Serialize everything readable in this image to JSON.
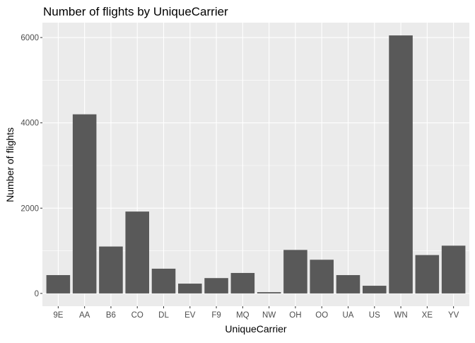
{
  "chart_data": {
    "type": "bar",
    "title": "Number of flights by UniqueCarrier",
    "xlabel": "UniqueCarrier",
    "ylabel": "Number of flights",
    "categories": [
      "9E",
      "AA",
      "B6",
      "CO",
      "DL",
      "EV",
      "F9",
      "MQ",
      "NW",
      "OH",
      "OO",
      "UA",
      "US",
      "WN",
      "XE",
      "YV"
    ],
    "values": [
      430,
      4200,
      1100,
      1920,
      580,
      230,
      360,
      480,
      30,
      1020,
      790,
      430,
      180,
      6050,
      900,
      1120
    ],
    "yticks": [
      0,
      2000,
      4000,
      6000
    ],
    "ylim": [
      -300,
      6350
    ],
    "grid": true,
    "legend": "none",
    "colors": {
      "bar": "#595959",
      "panel": "#ebebeb",
      "grid_major": "#ffffff",
      "tick_label": "#4d4d4d",
      "tick_mark": "#333333"
    }
  }
}
